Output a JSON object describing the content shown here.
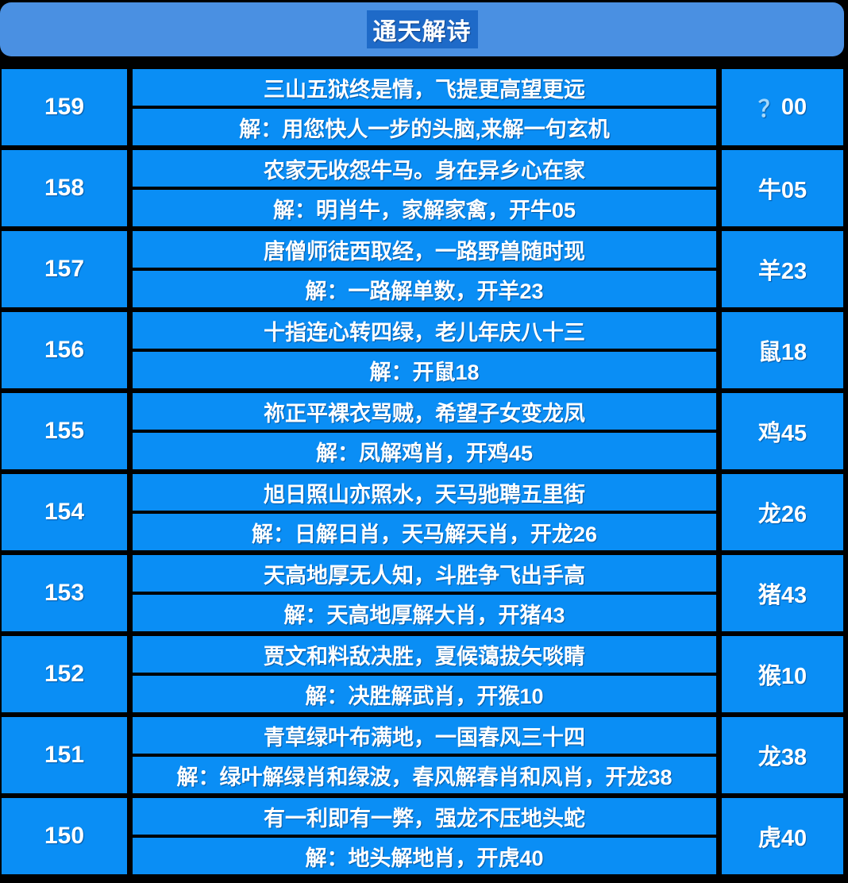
{
  "header": {
    "title": "通天解诗"
  },
  "colors": {
    "page_bg": "#000000",
    "header_bg": "#4a90e2",
    "title_bg": "#1e6ac8",
    "cell_bg": "#0a8ef5",
    "text": "#ffffff",
    "pending_mark": "#a5d8fb"
  },
  "rows": [
    {
      "period": "159",
      "poem": "三山五狱终是情，飞提更高望更远",
      "jie": "解：用您快人一步的头脑,来解一句玄机",
      "answer_prefix": "？",
      "answer": "00"
    },
    {
      "period": "158",
      "poem": "农家无收怨牛马。身在异乡心在家",
      "jie": "解：明肖牛，家解家禽，开牛05",
      "answer_prefix": "",
      "answer": "牛05"
    },
    {
      "period": "157",
      "poem": "唐僧师徒西取经，一路野兽随时现",
      "jie": "解：一路解单数，开羊23",
      "answer_prefix": "",
      "answer": "羊23"
    },
    {
      "period": "156",
      "poem": "十指连心转四绿，老儿年庆八十三",
      "jie": "解：开鼠18",
      "answer_prefix": "",
      "answer": "鼠18"
    },
    {
      "period": "155",
      "poem": "祢正平裸衣骂贼，希望子女变龙凤",
      "jie": "解：凤解鸡肖，开鸡45",
      "answer_prefix": "",
      "answer": "鸡45"
    },
    {
      "period": "154",
      "poem": "旭日照山亦照水，天马驰聘五里街",
      "jie": "解：日解日肖，天马解天肖，开龙26",
      "answer_prefix": "",
      "answer": "龙26"
    },
    {
      "period": "153",
      "poem": "天高地厚无人知，斗胜争飞出手高",
      "jie": "解：天高地厚解大肖，开猪43",
      "answer_prefix": "",
      "answer": "猪43"
    },
    {
      "period": "152",
      "poem": "贾文和料敌决胜，夏候蔼拔矢啖睛",
      "jie": "解：决胜解武肖，开猴10",
      "answer_prefix": "",
      "answer": "猴10"
    },
    {
      "period": "151",
      "poem": "青草绿叶布满地，一国春风三十四",
      "jie": "解：绿叶解绿肖和绿波，春风解春肖和风肖，开龙38",
      "answer_prefix": "",
      "answer": "龙38"
    },
    {
      "period": "150",
      "poem": "有一利即有一弊，强龙不压地头蛇",
      "jie": "解：地头解地肖，开虎40",
      "answer_prefix": "",
      "answer": "虎40"
    }
  ]
}
